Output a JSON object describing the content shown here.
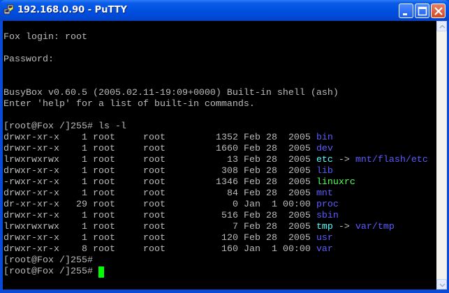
{
  "window": {
    "title": "192.168.0.90 - PuTTY",
    "buttons": [
      "minimize",
      "maximize",
      "close"
    ]
  },
  "terminal": {
    "colors": {
      "text": "#bbbbbb",
      "directory": "#5c5cff",
      "symlink": "#55ffff",
      "executable": "#55ff55",
      "cursor": "#00ff00"
    },
    "intro": [
      {
        "row": 1,
        "text": "Fox login: root"
      },
      {
        "row": 3,
        "text": "Password:"
      },
      {
        "row": 6,
        "text": "BusyBox v0.60.5 (2005.02.11-19:09+0000) Built-in shell (ash)"
      },
      {
        "row": 7,
        "text": "Enter 'help' for a list of built-in commands."
      },
      {
        "row": 9,
        "text": "[root@Fox /]255# ls -l"
      }
    ],
    "listing": [
      {
        "perms": "drwxr-xr-x",
        "links": "1",
        "owner": "root",
        "group": "root",
        "size": "1352",
        "date": "Feb 28  2005",
        "name": "bin",
        "type": "dir"
      },
      {
        "perms": "drwxr-xr-x",
        "links": "1",
        "owner": "root",
        "group": "root",
        "size": "1660",
        "date": "Feb 28  2005",
        "name": "dev",
        "type": "dir"
      },
      {
        "perms": "lrwxrwxrwx",
        "links": "1",
        "owner": "root",
        "group": "root",
        "size": "13",
        "date": "Feb 28  2005",
        "name": "etc",
        "type": "lnk",
        "target": "mnt/flash/etc"
      },
      {
        "perms": "drwxr-xr-x",
        "links": "1",
        "owner": "root",
        "group": "root",
        "size": "308",
        "date": "Feb 28  2005",
        "name": "lib",
        "type": "dir"
      },
      {
        "perms": "-rwxr-xr-x",
        "links": "1",
        "owner": "root",
        "group": "root",
        "size": "1346",
        "date": "Feb 28  2005",
        "name": "linuxrc",
        "type": "exe"
      },
      {
        "perms": "drwxr-xr-x",
        "links": "1",
        "owner": "root",
        "group": "root",
        "size": "84",
        "date": "Feb 28  2005",
        "name": "mnt",
        "type": "dir"
      },
      {
        "perms": "dr-xr-xr-x",
        "links": "29",
        "owner": "root",
        "group": "root",
        "size": "0",
        "date": "Jan  1 00:00",
        "name": "proc",
        "type": "dir"
      },
      {
        "perms": "drwxr-xr-x",
        "links": "1",
        "owner": "root",
        "group": "root",
        "size": "516",
        "date": "Feb 28  2005",
        "name": "sbin",
        "type": "dir"
      },
      {
        "perms": "lrwxrwxrwx",
        "links": "1",
        "owner": "root",
        "group": "root",
        "size": "7",
        "date": "Feb 28  2005",
        "name": "tmp",
        "type": "lnk",
        "target": "var/tmp"
      },
      {
        "perms": "drwxr-xr-x",
        "links": "1",
        "owner": "root",
        "group": "root",
        "size": "120",
        "date": "Feb 28  2005",
        "name": "usr",
        "type": "dir"
      },
      {
        "perms": "drwxr-xr-x",
        "links": "8",
        "owner": "root",
        "group": "root",
        "size": "160",
        "date": "Jan  1 00:00",
        "name": "var",
        "type": "dir"
      }
    ],
    "prompts": [
      "[root@Fox /]255#",
      "[root@Fox /]255# "
    ]
  }
}
